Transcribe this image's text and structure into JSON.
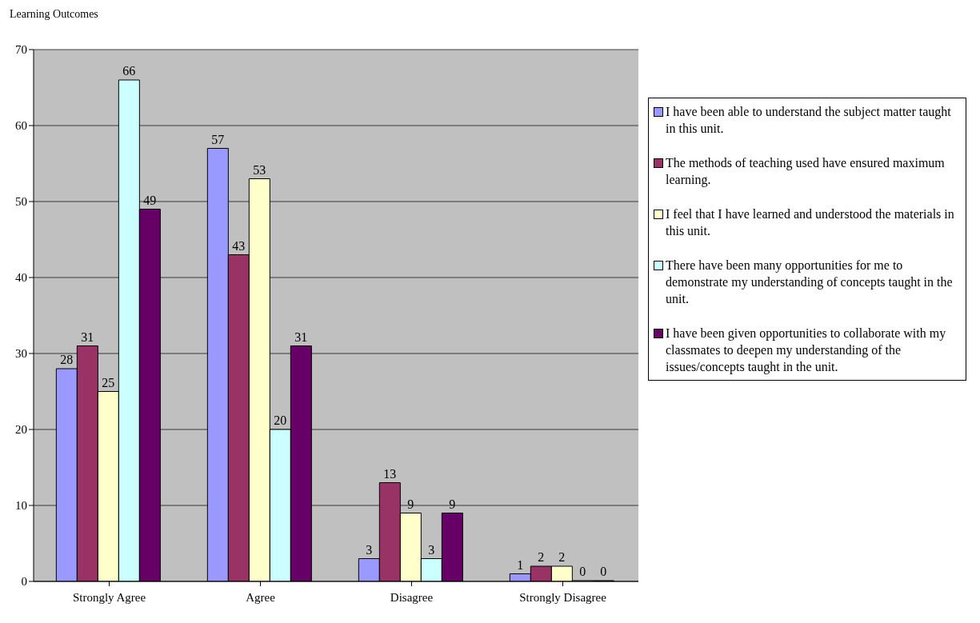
{
  "chart_data": {
    "type": "bar",
    "title": "Learning Outcomes",
    "categories": [
      "Strongly Agree",
      "Agree",
      "Disagree",
      "Strongly Disagree"
    ],
    "series": [
      {
        "name": "I have been able to understand the subject matter taught in this unit.",
        "color": "#9999ff",
        "values": [
          28,
          57,
          3,
          1
        ]
      },
      {
        "name": "The methods of teaching used have ensured maximum learning.",
        "color": "#993366",
        "values": [
          31,
          43,
          13,
          2
        ]
      },
      {
        "name": "I feel that I have learned and understood the materials in this unit.",
        "color": "#ffffcc",
        "values": [
          25,
          53,
          9,
          2
        ]
      },
      {
        "name": "There have been many opportunities for me to demonstrate my understanding of concepts taught in the unit.",
        "color": "#ccffff",
        "values": [
          66,
          20,
          3,
          0
        ]
      },
      {
        "name": "I have been given opportunities to collaborate with my classmates to deepen my understanding of the issues/concepts taught in the unit.",
        "color": "#660066",
        "values": [
          49,
          31,
          9,
          0
        ]
      }
    ],
    "ylim": [
      0,
      70
    ],
    "yticks": [
      0,
      10,
      20,
      30,
      40,
      50,
      60,
      70
    ],
    "grid": "y",
    "legend": "right",
    "data_labels": true
  }
}
